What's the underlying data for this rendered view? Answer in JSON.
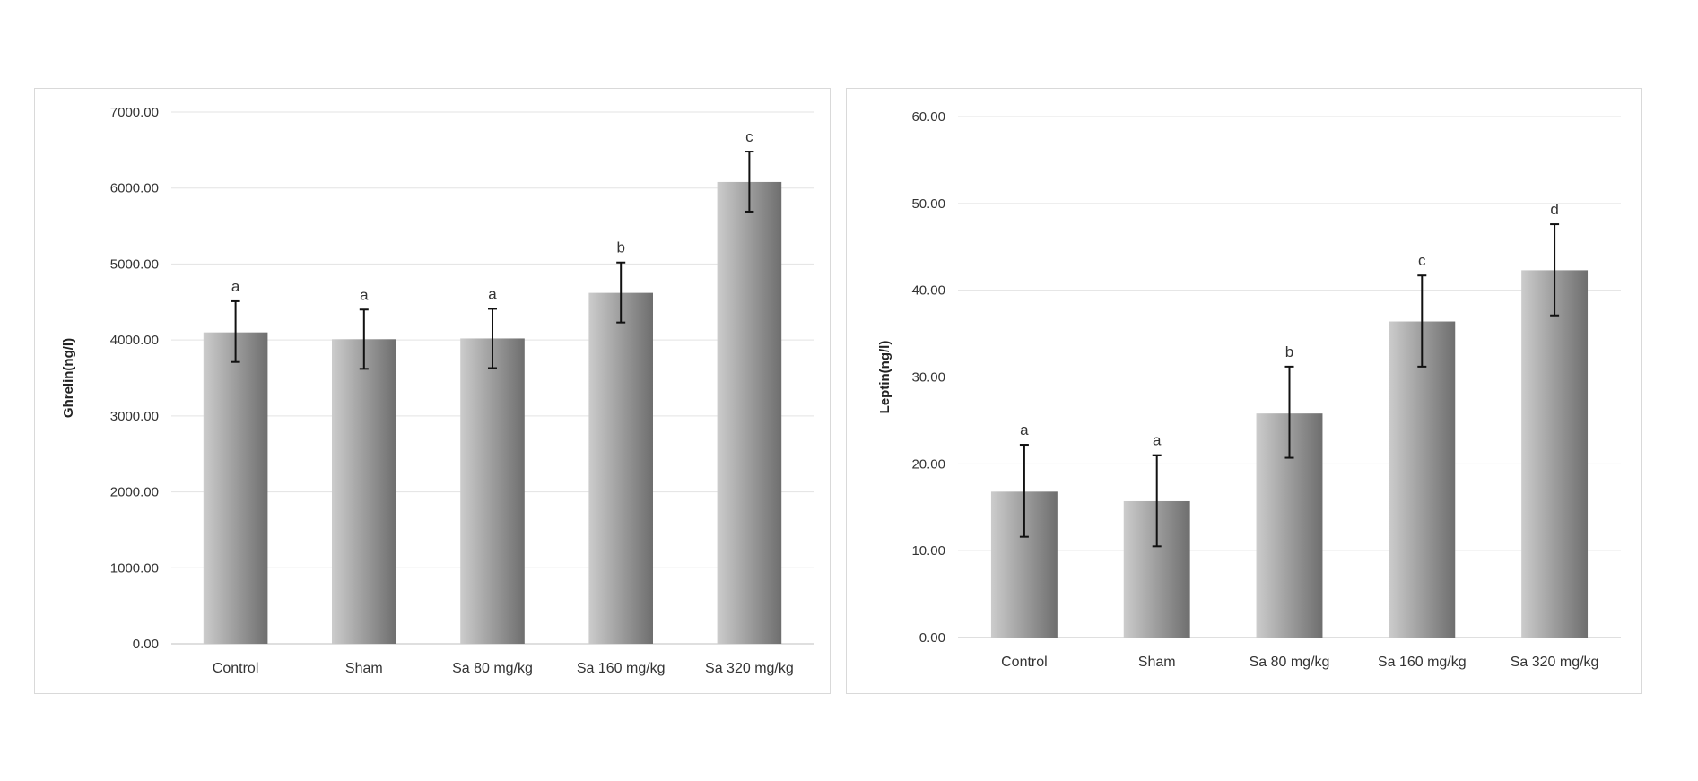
{
  "chart_data": [
    {
      "type": "bar",
      "title": "",
      "xlabel": "",
      "ylabel": "Ghrelin(ng/l)",
      "ylim": [
        0,
        7000
      ],
      "yticks": [
        0,
        1000,
        2000,
        3000,
        4000,
        5000,
        6000,
        7000
      ],
      "ytick_labels": [
        "0.00",
        "1000.00",
        "2000.00",
        "3000.00",
        "4000.00",
        "5000.00",
        "6000.00",
        "7000.00"
      ],
      "grid": true,
      "categories": [
        "Control",
        "Sham",
        "Sa 80 mg/kg",
        "Sa 160 mg/kg",
        "Sa 320 mg/kg"
      ],
      "values": [
        4100,
        4010,
        4020,
        4620,
        6080
      ],
      "error_low": [
        3710,
        3620,
        3630,
        4230,
        5690
      ],
      "error_high": [
        4510,
        4400,
        4410,
        5020,
        6480
      ],
      "annotations": [
        "a",
        "a",
        "a",
        "b",
        "c"
      ],
      "bar_color_light": "#cccccc",
      "bar_color_dark": "#6e6e6e"
    },
    {
      "type": "bar",
      "title": "",
      "xlabel": "",
      "ylabel": "Leptin(ng/l)",
      "ylim": [
        0,
        60
      ],
      "yticks": [
        0,
        10,
        20,
        30,
        40,
        50,
        60
      ],
      "ytick_labels": [
        "0.00",
        "10.00",
        "20.00",
        "30.00",
        "40.00",
        "50.00",
        "60.00"
      ],
      "grid": true,
      "categories": [
        "Control",
        "Sham",
        "Sa 80 mg/kg",
        "Sa 160 mg/kg",
        "Sa 320 mg/kg"
      ],
      "values": [
        16.8,
        15.7,
        25.8,
        36.4,
        42.3
      ],
      "error_low": [
        11.6,
        10.5,
        20.7,
        31.2,
        37.1
      ],
      "error_high": [
        22.2,
        21.0,
        31.2,
        41.7,
        47.6
      ],
      "annotations": [
        "a",
        "a",
        "b",
        "c",
        "d"
      ],
      "bar_color_light": "#cccccc",
      "bar_color_dark": "#6e6e6e"
    }
  ]
}
